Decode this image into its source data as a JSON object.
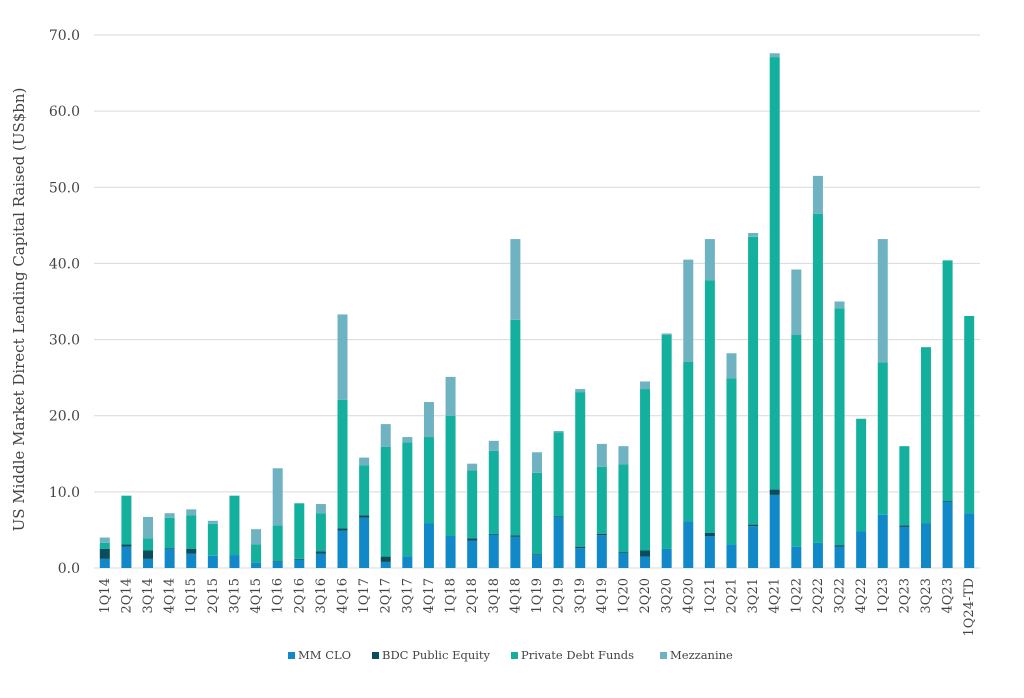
{
  "chart_data": {
    "type": "bar",
    "stacked": true,
    "ylabel": "US Middle Market Direct Lending Capital Raised (US$bn)",
    "ylim": [
      0,
      70
    ],
    "yticks": [
      "0.0",
      "10.0",
      "20.0",
      "30.0",
      "40.0",
      "50.0",
      "60.0",
      "70.0"
    ],
    "grid": true,
    "legend_position": "bottom",
    "categories": [
      "1Q14",
      "2Q14",
      "3Q14",
      "4Q14",
      "1Q15",
      "2Q15",
      "3Q15",
      "4Q15",
      "1Q16",
      "2Q16",
      "3Q16",
      "4Q16",
      "1Q17",
      "2Q17",
      "3Q17",
      "4Q17",
      "1Q18",
      "2Q18",
      "3Q18",
      "4Q18",
      "1Q19",
      "2Q19",
      "3Q19",
      "4Q19",
      "1Q20",
      "2Q20",
      "3Q20",
      "4Q20",
      "1Q21",
      "2Q21",
      "3Q21",
      "4Q21",
      "1Q22",
      "2Q22",
      "3Q22",
      "4Q22",
      "1Q23",
      "2Q23",
      "3Q23",
      "4Q23",
      "1Q24-TD"
    ],
    "series": [
      {
        "name": "MM CLO",
        "color": "#1188c8",
        "values": [
          1.2,
          2.8,
          1.2,
          2.5,
          1.9,
          1.6,
          1.7,
          0.7,
          0.8,
          1.1,
          1.9,
          4.9,
          6.6,
          0.8,
          1.5,
          5.9,
          4.2,
          3.6,
          4.4,
          4.1,
          1.7,
          6.7,
          2.6,
          4.3,
          2.0,
          1.5,
          2.5,
          6.1,
          4.2,
          3.1,
          5.5,
          9.6,
          2.8,
          3.3,
          2.8,
          4.8,
          7.0,
          5.4,
          5.9,
          8.7,
          7.2
        ]
      },
      {
        "name": "BDC Public Equity",
        "color": "#0b4d5c",
        "values": [
          1.3,
          0.3,
          1.1,
          0.1,
          0.6,
          0.0,
          0.0,
          0.0,
          0.1,
          0.1,
          0.3,
          0.3,
          0.3,
          0.7,
          0.0,
          0.0,
          0.0,
          0.3,
          0.1,
          0.2,
          0.1,
          0.1,
          0.2,
          0.2,
          0.1,
          0.8,
          0.0,
          0.0,
          0.4,
          0.0,
          0.2,
          0.7,
          0.0,
          0.0,
          0.2,
          0.0,
          0.0,
          0.2,
          0.0,
          0.1,
          0.0
        ]
      },
      {
        "name": "Private Debt Funds",
        "color": "#14b09e",
        "values": [
          0.8,
          6.4,
          1.6,
          4.0,
          4.4,
          4.2,
          7.8,
          2.4,
          4.7,
          7.3,
          5.0,
          16.9,
          6.6,
          14.4,
          15.0,
          11.3,
          15.8,
          8.9,
          10.9,
          28.3,
          10.7,
          11.0,
          20.3,
          8.8,
          11.5,
          21.2,
          28.1,
          21.0,
          33.2,
          21.8,
          37.8,
          56.8,
          27.8,
          43.2,
          31.1,
          14.8,
          20.0,
          10.4,
          23.1,
          31.6,
          25.9
        ]
      },
      {
        "name": "Mezzanine",
        "color": "#6fb3c3",
        "values": [
          0.7,
          0.0,
          2.8,
          0.6,
          0.8,
          0.4,
          0.0,
          2.0,
          7.5,
          0.0,
          1.2,
          11.2,
          1.0,
          3.0,
          0.7,
          4.6,
          5.1,
          0.9,
          1.3,
          10.6,
          2.7,
          0.2,
          0.4,
          3.0,
          2.4,
          1.0,
          0.2,
          13.4,
          5.4,
          3.3,
          0.5,
          0.5,
          8.6,
          5.0,
          0.9,
          0.0,
          16.2,
          0.0,
          0.0,
          0.0,
          0.0
        ]
      }
    ]
  }
}
